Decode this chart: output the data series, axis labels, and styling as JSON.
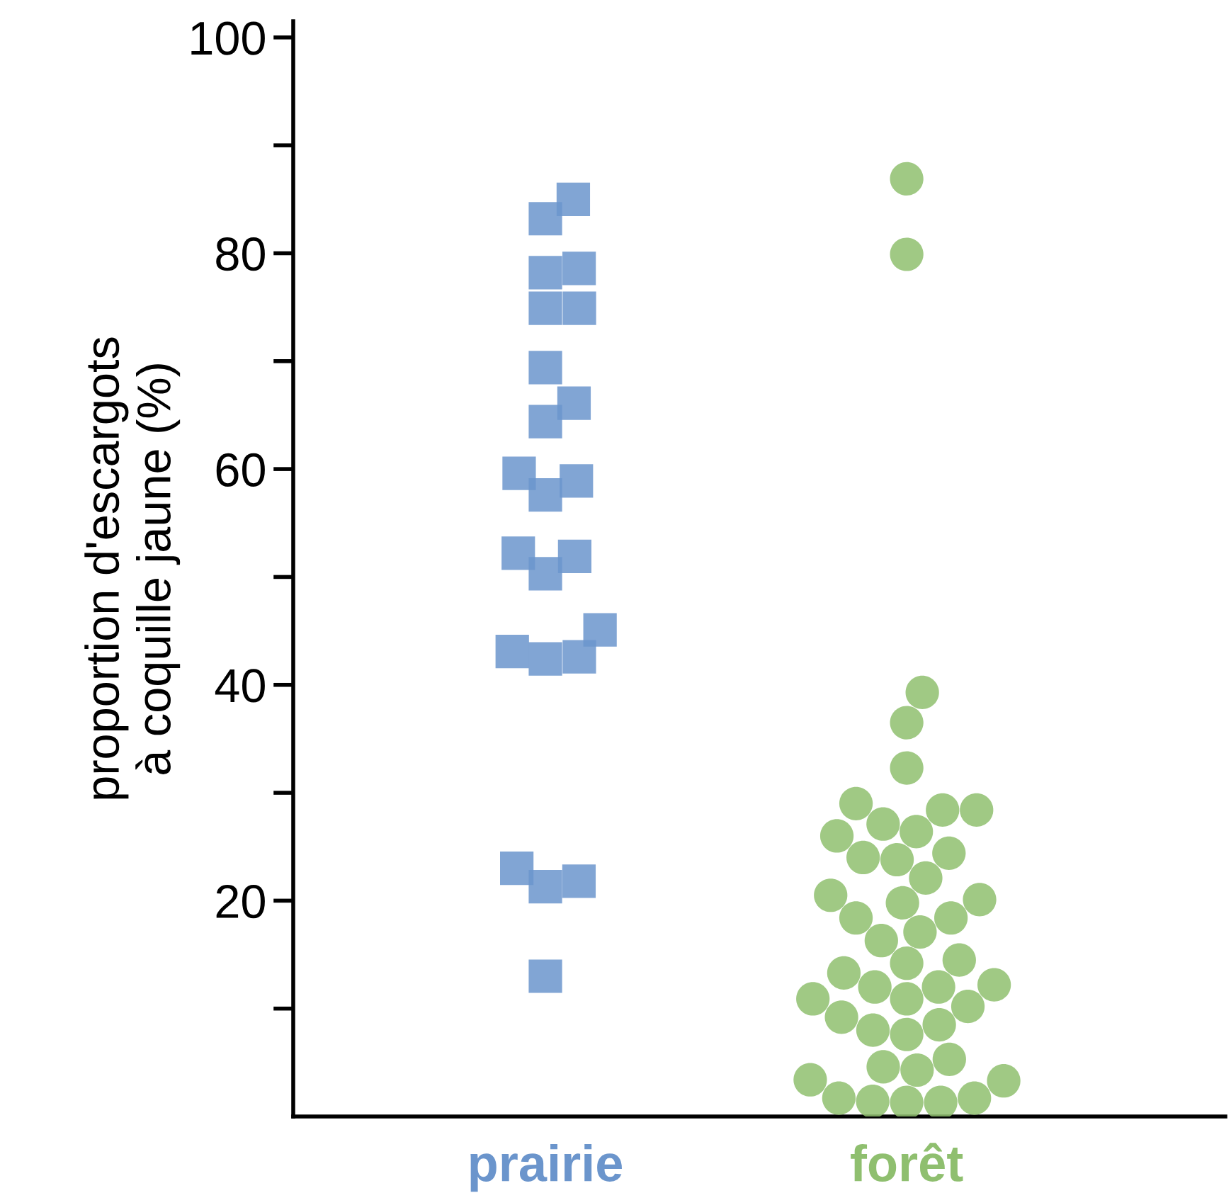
{
  "chart_data": {
    "type": "scatter",
    "ylabel": "proportion d'escargots\nà coquille jaune (%)",
    "categories": [
      "prairie",
      "forêt"
    ],
    "ylim": [
      0,
      101.5
    ],
    "yticks": [
      {
        "value": 10,
        "label": null
      },
      20,
      {
        "value": 30,
        "label": null
      },
      40,
      {
        "value": 50,
        "label": null
      },
      60,
      {
        "value": 70,
        "label": null
      },
      80,
      {
        "value": 90,
        "label": null
      },
      100
    ],
    "grid": false,
    "legend": false,
    "series": [
      {
        "color": "#6b95cc",
        "marker": "square",
        "x": [
          "prairie",
          "prairie",
          "prairie",
          "prairie",
          "prairie",
          "prairie",
          "prairie",
          "prairie",
          "prairie",
          "prairie",
          "prairie",
          "prairie",
          "prairie",
          "prairie",
          "prairie",
          "prairie",
          "prairie",
          "prairie",
          "prairie",
          "prairie",
          "prairie",
          "prairie",
          "prairie"
        ],
        "values": [
          85.0,
          83.2,
          78.6,
          78.2,
          74.9,
          74.9,
          69.4,
          66.1,
          64.4,
          58.9,
          59.6,
          57.6,
          51.9,
          52.2,
          50.3,
          45.1,
          42.4,
          42.6,
          43.1,
          23.0,
          21.3,
          21.8,
          13.0
        ]
      },
      {
        "color": "#8fbf6f",
        "marker": "circle",
        "x": [
          "forêt",
          "forêt",
          "forêt",
          "forêt",
          "forêt",
          "forêt",
          "forêt",
          "forêt",
          "forêt",
          "forêt",
          "forêt",
          "forêt",
          "forêt",
          "forêt",
          "forêt",
          "forêt",
          "forêt",
          "forêt",
          "forêt",
          "forêt",
          "forêt",
          "forêt",
          "forêt",
          "forêt",
          "forêt",
          "forêt",
          "forêt",
          "forêt",
          "forêt",
          "forêt",
          "forêt",
          "forêt",
          "forêt",
          "forêt",
          "forêt",
          "forêt",
          "forêt",
          "forêt",
          "forêt",
          "forêt",
          "forêt",
          "forêt",
          "forêt",
          "forêt",
          "forêt"
        ],
        "values": [
          86.9,
          79.9,
          39.3,
          36.5,
          32.3,
          28.4,
          26.4,
          24.4,
          20.5,
          16.3,
          13.3,
          10.9,
          8.0,
          4.3,
          1.3,
          28.4,
          26.0,
          23.8,
          19.8,
          18.4,
          17.1,
          14.2,
          12.0,
          10.9,
          7.6,
          4.6,
          3.3,
          1.7,
          29.0,
          27.1,
          24.0,
          22.1,
          20.1,
          18.4,
          14.5,
          12.0,
          10.2,
          8.5,
          5.3,
          3.4,
          1.7,
          12.2,
          9.2,
          1.4,
          1.3
        ]
      }
    ]
  }
}
